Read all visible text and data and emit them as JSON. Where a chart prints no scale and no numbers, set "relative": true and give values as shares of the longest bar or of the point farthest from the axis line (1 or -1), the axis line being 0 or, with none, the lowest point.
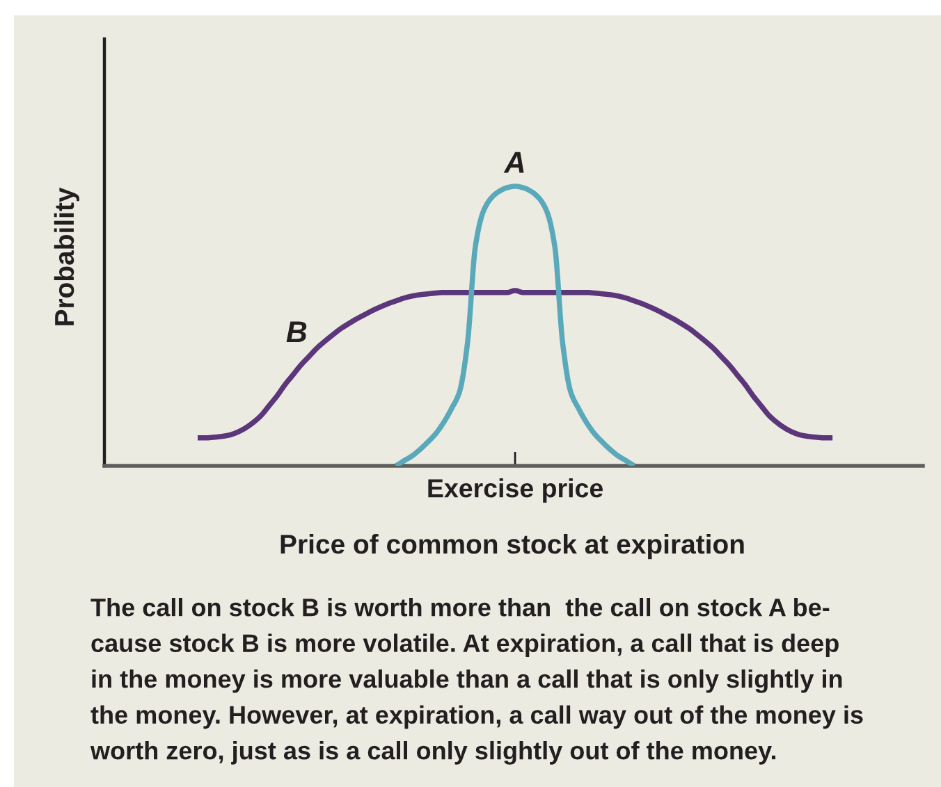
{
  "chart_data": {
    "type": "line",
    "relative": true,
    "xlabel": "Price of common stock at expiration",
    "ylabel": "Probability",
    "categories": [
      null,
      null,
      null,
      null,
      null,
      null,
      null,
      null,
      null,
      null,
      null,
      null,
      null,
      null,
      null,
      null,
      null,
      null,
      null,
      null,
      null,
      null,
      null,
      null,
      null,
      null,
      null,
      null,
      null,
      null,
      null,
      null,
      null,
      null,
      null,
      null,
      null,
      null,
      null,
      null,
      null,
      null,
      null,
      null,
      null,
      null,
      null,
      null,
      null,
      null,
      null,
      null,
      null,
      null,
      null,
      null,
      null,
      null,
      null,
      null,
      null,
      null,
      null,
      null,
      null,
      null,
      null,
      null,
      null,
      null,
      null,
      null,
      null,
      null,
      null,
      null,
      null,
      null,
      null,
      null,
      null
    ],
    "series": [
      {
        "name": "B",
        "color": "#5c367b",
        "values": [
          0.1,
          0.1,
          0.102,
          0.105,
          0.11,
          0.12,
          0.135,
          0.155,
          0.18,
          0.215,
          0.25,
          0.29,
          0.325,
          0.36,
          0.39,
          0.42,
          0.445,
          0.468,
          0.49,
          0.508,
          0.525,
          0.54,
          0.555,
          0.568,
          0.58,
          0.59,
          0.6,
          0.607,
          0.612,
          0.615,
          0.618,
          0.62,
          0.62,
          0.62,
          0.62,
          0.62,
          0.62,
          0.62,
          0.62,
          0.62,
          0.627,
          0.62,
          0.62,
          0.62,
          0.62,
          0.62,
          0.62,
          0.62,
          0.62,
          0.62,
          0.618,
          0.615,
          0.612,
          0.607,
          0.6,
          0.59,
          0.58,
          0.568,
          0.555,
          0.54,
          0.525,
          0.508,
          0.49,
          0.468,
          0.445,
          0.42,
          0.39,
          0.36,
          0.325,
          0.29,
          0.25,
          0.215,
          0.18,
          0.155,
          0.135,
          0.12,
          0.11,
          0.105,
          0.102,
          0.1,
          0.1
        ]
      },
      {
        "name": "A",
        "color": "#5aa9bb",
        "values": [
          null,
          null,
          null,
          null,
          null,
          null,
          null,
          null,
          null,
          null,
          null,
          null,
          null,
          null,
          null,
          null,
          null,
          null,
          null,
          null,
          null,
          null,
          null,
          null,
          null,
          0.0,
          0.018,
          0.035,
          0.058,
          0.085,
          0.115,
          0.155,
          0.205,
          0.265,
          0.438,
          0.785,
          0.91,
          0.958,
          0.982,
          0.995,
          1.0,
          0.995,
          0.982,
          0.958,
          0.91,
          0.785,
          0.438,
          0.265,
          0.205,
          0.155,
          0.115,
          0.085,
          0.058,
          0.035,
          0.018,
          0.0,
          null,
          null,
          null,
          null,
          null,
          null,
          null,
          null,
          null,
          null,
          null,
          null,
          null,
          null,
          null,
          null,
          null,
          null,
          null,
          null,
          null,
          null,
          null,
          null,
          null
        ]
      }
    ],
    "annotations": [
      "Exercise price",
      "The call on stock B is worth more than  the call on stock A be-\ncause stock B is more volatile. At expiration, a call that is deep\nin the money is more valuable than a call that is only slightly in\nthe money. However, at expiration, a call way out of the money is\nworth zero, just as is a call only slightly out of the money."
    ]
  }
}
